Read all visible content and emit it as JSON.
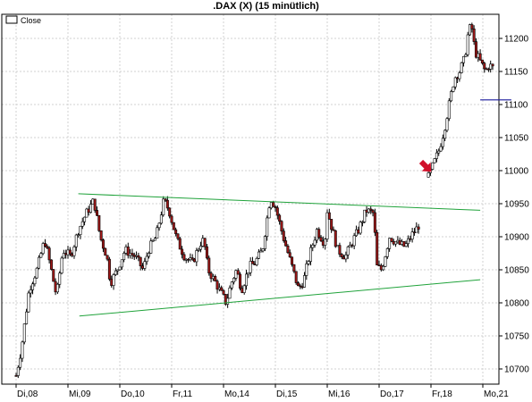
{
  "chart_data": {
    "type": "candlestick",
    "title": ".DAX (X) (15 minütlich)",
    "legend": [
      {
        "label": "Close",
        "position": "top-left"
      }
    ],
    "grid": true,
    "ylim": [
      10680,
      11230
    ],
    "y_ticks": [
      10700,
      10750,
      10800,
      10850,
      10900,
      10950,
      11000,
      11050,
      11100,
      11150,
      11200
    ],
    "x_ticks": [
      "Di,08",
      "Mi,09",
      "Do,10",
      "Fr,11",
      "Mo,14",
      "Di,15",
      "Mi,16",
      "Do,17",
      "Fr,18",
      "Mo,21"
    ],
    "day_range": [
      0,
      9.55
    ],
    "colors": {
      "up": "#ffffff",
      "down": "#a01818",
      "wick": "#000000",
      "grid": "#d0d0d0",
      "trend": "#1fa23a",
      "level": "#1a1a9c",
      "arrow": "#d0102a"
    },
    "path": [
      [
        0.0,
        10690
      ],
      [
        0.1,
        10730
      ],
      [
        0.25,
        10820
      ],
      [
        0.4,
        10850
      ],
      [
        0.55,
        10895
      ],
      [
        0.65,
        10860
      ],
      [
        0.78,
        10810
      ],
      [
        0.9,
        10880
      ],
      [
        1.05,
        10870
      ],
      [
        1.2,
        10910
      ],
      [
        1.35,
        10935
      ],
      [
        1.5,
        10955
      ],
      [
        1.62,
        10900
      ],
      [
        1.75,
        10870
      ],
      [
        1.82,
        10830
      ],
      [
        1.95,
        10850
      ],
      [
        2.1,
        10880
      ],
      [
        2.3,
        10870
      ],
      [
        2.45,
        10850
      ],
      [
        2.55,
        10880
      ],
      [
        2.7,
        10900
      ],
      [
        2.85,
        10955
      ],
      [
        2.95,
        10940
      ],
      [
        3.1,
        10895
      ],
      [
        3.25,
        10870
      ],
      [
        3.4,
        10860
      ],
      [
        3.55,
        10890
      ],
      [
        3.62,
        10895
      ],
      [
        3.7,
        10850
      ],
      [
        3.85,
        10830
      ],
      [
        4.05,
        10800
      ],
      [
        4.15,
        10830
      ],
      [
        4.25,
        10850
      ],
      [
        4.35,
        10820
      ],
      [
        4.5,
        10855
      ],
      [
        4.6,
        10860
      ],
      [
        4.75,
        10880
      ],
      [
        4.9,
        10960
      ],
      [
        5.0,
        10945
      ],
      [
        5.15,
        10900
      ],
      [
        5.3,
        10860
      ],
      [
        5.45,
        10820
      ],
      [
        5.55,
        10835
      ],
      [
        5.65,
        10870
      ],
      [
        5.8,
        10910
      ],
      [
        5.95,
        10890
      ],
      [
        6.0,
        10940
      ],
      [
        6.1,
        10910
      ],
      [
        6.2,
        10880
      ],
      [
        6.35,
        10870
      ],
      [
        6.5,
        10895
      ],
      [
        6.6,
        10910
      ],
      [
        6.75,
        10940
      ],
      [
        6.9,
        10935
      ],
      [
        6.95,
        10855
      ],
      [
        7.05,
        10850
      ],
      [
        7.2,
        10900
      ],
      [
        7.35,
        10890
      ],
      [
        7.5,
        10885
      ],
      [
        7.65,
        10905
      ],
      [
        7.75,
        10915
      ],
      [
        7.8,
        10925
      ]
    ],
    "path2": [
      [
        7.95,
        10990
      ],
      [
        8.05,
        11010
      ],
      [
        8.15,
        11030
      ],
      [
        8.25,
        11060
      ],
      [
        8.35,
        11100
      ],
      [
        8.45,
        11140
      ],
      [
        8.55,
        11150
      ],
      [
        8.65,
        11170
      ],
      [
        8.72,
        11210
      ],
      [
        8.78,
        11220
      ],
      [
        8.85,
        11180
      ],
      [
        8.95,
        11165
      ],
      [
        9.05,
        11150
      ],
      [
        9.12,
        11160
      ],
      [
        9.2,
        11155
      ]
    ],
    "trendlines": [
      [
        [
          1.2,
          10965
        ],
        [
          8.95,
          10940
        ]
      ],
      [
        [
          1.22,
          10780
        ],
        [
          8.95,
          10835
        ]
      ]
    ],
    "level_line": {
      "y": 11107,
      "x0": 8.95,
      "x1": 9.55
    },
    "arrow": {
      "x": 7.92,
      "y": 11005
    }
  }
}
